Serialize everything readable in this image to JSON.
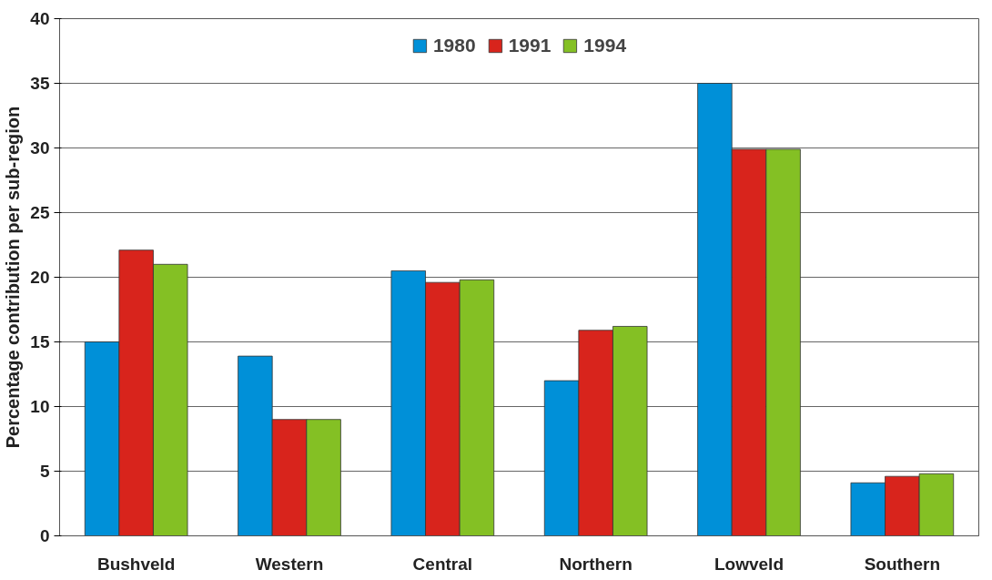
{
  "chart_data": {
    "type": "bar",
    "ylabel": "Percentage contribution per sub-region",
    "categories": [
      "Bushveld",
      "Western",
      "Central",
      "Northern",
      "Lowveld",
      "Southern"
    ],
    "series": [
      {
        "name": "1980",
        "color": "#0090d8",
        "values": [
          15.0,
          13.9,
          20.5,
          12.0,
          35.0,
          4.1
        ]
      },
      {
        "name": "1991",
        "color": "#d8241c",
        "values": [
          22.1,
          9.0,
          19.6,
          15.9,
          29.9,
          4.6
        ]
      },
      {
        "name": "1994",
        "color": "#84c024",
        "values": [
          21.0,
          9.0,
          19.8,
          16.2,
          29.9,
          4.8
        ]
      }
    ],
    "ylim": [
      0,
      40
    ],
    "yticks": [
      0,
      5,
      10,
      15,
      20,
      25,
      30,
      35,
      40
    ],
    "grid": "y",
    "legend": "top"
  }
}
